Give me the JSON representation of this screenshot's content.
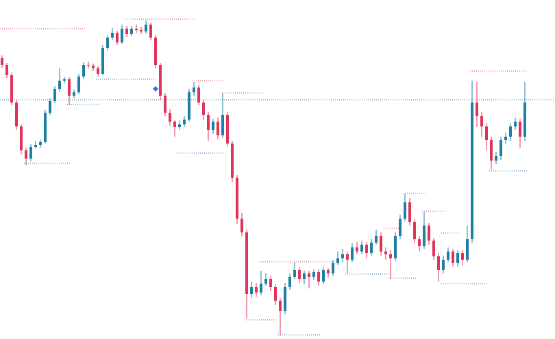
{
  "chart_data": {
    "type": "candlestick",
    "ylim": [
      0,
      496
    ],
    "up_color": "#1e7fa6",
    "down_color": "#e0335a",
    "candles": [
      [
        411,
        415,
        397,
        401
      ],
      [
        401,
        404,
        382,
        386
      ],
      [
        386,
        390,
        342,
        346
      ],
      [
        346,
        350,
        306,
        311
      ],
      [
        311,
        314,
        270,
        276
      ],
      [
        276,
        280,
        254,
        264
      ],
      [
        264,
        285,
        260,
        281
      ],
      [
        281,
        290,
        279,
        284
      ],
      [
        284,
        292,
        280,
        288
      ],
      [
        288,
        335,
        286,
        331
      ],
      [
        331,
        352,
        328,
        348
      ],
      [
        348,
        370,
        345,
        366
      ],
      [
        366,
        396,
        362,
        378
      ],
      [
        378,
        384,
        374,
        380
      ],
      [
        380,
        383,
        342,
        356
      ],
      [
        356,
        365,
        352,
        361
      ],
      [
        361,
        388,
        358,
        384
      ],
      [
        384,
        405,
        380,
        401
      ],
      [
        401,
        406,
        396,
        400
      ],
      [
        400,
        403,
        392,
        396
      ],
      [
        396,
        399,
        384,
        388
      ],
      [
        388,
        430,
        386,
        426
      ],
      [
        426,
        445,
        422,
        441
      ],
      [
        441,
        455,
        438,
        448
      ],
      [
        448,
        451,
        430,
        434
      ],
      [
        434,
        460,
        432,
        454
      ],
      [
        454,
        458,
        442,
        446
      ],
      [
        446,
        458,
        443,
        454
      ],
      [
        454,
        460,
        448,
        452
      ],
      [
        452,
        457,
        446,
        450
      ],
      [
        450,
        466,
        447,
        460
      ],
      [
        460,
        463,
        437,
        441
      ],
      [
        441,
        445,
        396,
        401
      ],
      [
        401,
        404,
        350,
        356
      ],
      [
        356,
        360,
        326,
        331
      ],
      [
        331,
        336,
        312,
        318
      ],
      [
        318,
        320,
        296,
        310
      ],
      [
        310,
        320,
        306,
        314
      ],
      [
        314,
        326,
        310,
        321
      ],
      [
        321,
        366,
        318,
        361
      ],
      [
        361,
        376,
        356,
        368
      ],
      [
        368,
        372,
        342,
        346
      ],
      [
        346,
        350,
        320,
        328
      ],
      [
        328,
        332,
        290,
        306
      ],
      [
        306,
        322,
        300,
        318
      ],
      [
        318,
        324,
        292,
        298
      ],
      [
        298,
        360,
        294,
        328
      ],
      [
        328,
        332,
        282,
        286
      ],
      [
        286,
        290,
        230,
        236
      ],
      [
        236,
        240,
        168,
        176
      ],
      [
        176,
        184,
        150,
        156
      ],
      [
        156,
        160,
        30,
        66
      ],
      [
        66,
        84,
        60,
        76
      ],
      [
        76,
        82,
        62,
        68
      ],
      [
        68,
        100,
        64,
        81
      ],
      [
        81,
        96,
        78,
        88
      ],
      [
        88,
        92,
        70,
        76
      ],
      [
        76,
        80,
        50,
        56
      ],
      [
        56,
        60,
        6,
        41
      ],
      [
        41,
        82,
        36,
        76
      ],
      [
        76,
        96,
        72,
        91
      ],
      [
        91,
        112,
        88,
        101
      ],
      [
        101,
        105,
        82,
        88
      ],
      [
        88,
        100,
        80,
        96
      ],
      [
        96,
        100,
        74,
        91
      ],
      [
        91,
        102,
        86,
        98
      ],
      [
        98,
        102,
        78,
        84
      ],
      [
        84,
        106,
        80,
        101
      ],
      [
        101,
        104,
        90,
        96
      ],
      [
        96,
        116,
        92,
        111
      ],
      [
        111,
        128,
        108,
        118
      ],
      [
        118,
        132,
        112,
        124
      ],
      [
        124,
        128,
        96,
        116
      ],
      [
        116,
        140,
        112,
        134
      ],
      [
        134,
        142,
        124,
        128
      ],
      [
        128,
        144,
        124,
        138
      ],
      [
        138,
        142,
        118,
        126
      ],
      [
        126,
        146,
        122,
        141
      ],
      [
        141,
        160,
        138,
        151
      ],
      [
        151,
        156,
        122,
        128
      ],
      [
        128,
        134,
        116,
        124
      ],
      [
        124,
        130,
        88,
        118
      ],
      [
        118,
        156,
        114,
        151
      ],
      [
        151,
        182,
        146,
        176
      ],
      [
        176,
        212,
        172,
        200
      ],
      [
        200,
        206,
        166,
        171
      ],
      [
        171,
        176,
        140,
        146
      ],
      [
        146,
        150,
        128,
        136
      ],
      [
        136,
        186,
        132,
        166
      ],
      [
        166,
        170,
        138,
        144
      ],
      [
        144,
        148,
        116,
        121
      ],
      [
        121,
        126,
        84,
        101
      ],
      [
        101,
        122,
        96,
        116
      ],
      [
        116,
        134,
        112,
        128
      ],
      [
        128,
        132,
        106,
        111
      ],
      [
        111,
        130,
        106,
        126
      ],
      [
        126,
        130,
        108,
        116
      ],
      [
        116,
        166,
        112,
        146
      ],
      [
        146,
        378,
        140,
        346
      ],
      [
        346,
        376,
        310,
        326
      ],
      [
        326,
        332,
        296,
        311
      ],
      [
        311,
        316,
        276,
        291
      ],
      [
        291,
        296,
        248,
        261
      ],
      [
        261,
        274,
        256,
        268
      ],
      [
        268,
        296,
        262,
        291
      ],
      [
        291,
        302,
        286,
        296
      ],
      [
        296,
        316,
        290,
        311
      ],
      [
        311,
        324,
        306,
        318
      ],
      [
        318,
        322,
        280,
        296
      ],
      [
        296,
        376,
        290,
        346
      ]
    ],
    "resistance": {
      "color": "#d6465e",
      "levels": [
        {
          "value": 454,
          "from": 0,
          "to": 17
        },
        {
          "value": 468,
          "from": 26,
          "to": 40
        },
        {
          "value": 392,
          "from": 98,
          "to": 109
        },
        {
          "value": 360,
          "from": 46,
          "to": 54
        },
        {
          "value": 378,
          "from": 40,
          "to": 46
        },
        {
          "value": 213,
          "from": 84,
          "to": 88
        },
        {
          "value": 187,
          "from": 88,
          "to": 92
        },
        {
          "value": 162,
          "from": 80,
          "to": 83
        },
        {
          "value": 113,
          "from": 54,
          "to": 69
        },
        {
          "value": 155,
          "from": 92,
          "to": 95
        }
      ]
    },
    "support": {
      "color": "#3a6fb0",
      "levels": [
        {
          "value": 380,
          "from": 20,
          "to": 32
        },
        {
          "value": 343,
          "from": 14,
          "to": 20
        },
        {
          "value": 257,
          "from": 5,
          "to": 14
        },
        {
          "value": 272,
          "from": 37,
          "to": 46
        },
        {
          "value": 28,
          "from": 51,
          "to": 57
        },
        {
          "value": 6,
          "from": 58,
          "to": 66
        },
        {
          "value": 89,
          "from": 81,
          "to": 86
        },
        {
          "value": 95,
          "from": 72,
          "to": 81
        },
        {
          "value": 81,
          "from": 92,
          "to": 101
        },
        {
          "value": 246,
          "from": 102,
          "to": 109
        }
      ]
    },
    "price_line": {
      "value": 350,
      "color": "#3a6fb0"
    },
    "marker": {
      "index": 32,
      "value": 366,
      "color": "#2d6cf0"
    }
  }
}
